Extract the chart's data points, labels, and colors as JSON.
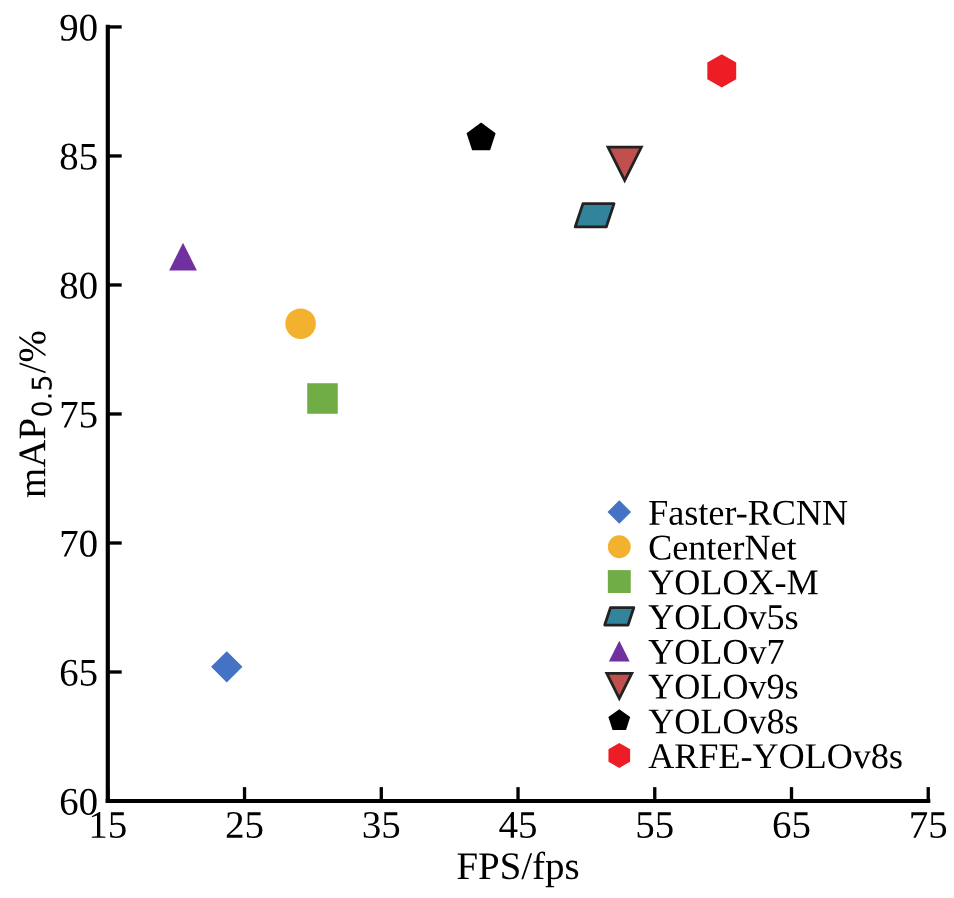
{
  "chart_data": {
    "type": "scatter",
    "xlabel": "FPS/fps",
    "ylabel": "mAP$_{0.5}$/%",
    "xlim": [
      15,
      75
    ],
    "xticks": [
      15,
      25,
      35,
      45,
      55,
      65,
      75
    ],
    "ylim": [
      60,
      90
    ],
    "yticks": [
      60,
      65,
      70,
      75,
      80,
      85,
      90
    ],
    "grid": false,
    "legend": "bottom right",
    "series": [
      {
        "name": "Faster-RCNN",
        "color": "#4472c4",
        "marker": "diamond",
        "x": [
          23.7
        ],
        "values": [
          65.2
        ]
      },
      {
        "name": "CenterNet",
        "color": "#f2b230",
        "marker": "circle",
        "x": [
          29.1
        ],
        "values": [
          78.5
        ]
      },
      {
        "name": "YOLOX-M",
        "color": "#70ad47",
        "marker": "square",
        "x": [
          30.7
        ],
        "values": [
          75.6
        ]
      },
      {
        "name": "YOLOv5s",
        "color": "#31849b",
        "x": [
          50.6
        ],
        "values": [
          82.7
        ]
      },
      {
        "name": "YOLOv7",
        "color": "#7030a0",
        "marker": "triangle",
        "x": [
          20.5
        ],
        "values": [
          81.1
        ]
      },
      {
        "name": "YOLOv9s",
        "color": "#c0504d",
        "marker": "triangle_down",
        "x": [
          52.8
        ],
        "values": [
          84.7
        ]
      },
      {
        "name": "YOLOv8s",
        "color": "#000000",
        "x": [
          42.3
        ],
        "values": [
          85.7
        ]
      },
      {
        "name": "ARFE-YOLOv8s",
        "color": "#ee1c25",
        "x": [
          59.9
        ],
        "values": [
          88.3
        ]
      }
    ]
  }
}
